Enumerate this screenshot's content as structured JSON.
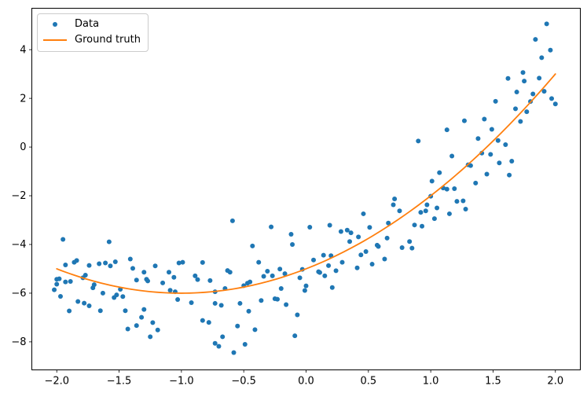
{
  "chart_data": {
    "type": "scatter",
    "title": "",
    "xlabel": "",
    "ylabel": "",
    "grid": false,
    "xlim": [
      -2.2,
      2.2
    ],
    "ylim": [
      -9.15,
      5.7
    ],
    "x_ticks": [
      -2.0,
      -1.5,
      -1.0,
      -0.5,
      0.0,
      0.5,
      1.0,
      1.5,
      2.0
    ],
    "x_tick_labels": [
      "−2.0",
      "−1.5",
      "−1.0",
      "−0.5",
      "0.0",
      "0.5",
      "1.0",
      "1.5",
      "2.0"
    ],
    "y_ticks": [
      -8,
      -6,
      -4,
      -2,
      0,
      2,
      4
    ],
    "y_tick_labels": [
      "−8",
      "−6",
      "−4",
      "−2",
      "0",
      "2",
      "4"
    ],
    "colors": {
      "data": "#1f77b4",
      "ground_truth": "#ff7f0e",
      "spine": "#000000"
    },
    "legend": {
      "position": "upper left",
      "entries": [
        {
          "label": "Data",
          "type": "scatter",
          "color": "#1f77b4"
        },
        {
          "label": "Ground truth",
          "type": "line",
          "color": "#ff7f0e"
        }
      ]
    },
    "series": [
      {
        "name": "Data",
        "type": "scatter",
        "color": "#1f77b4",
        "marker_radius": 3,
        "points": [
          [
            1.93,
            5.06
          ],
          [
            1.84,
            4.42
          ],
          [
            1.96,
            3.98
          ],
          [
            1.89,
            3.67
          ],
          [
            1.74,
            3.06
          ],
          [
            1.62,
            2.82
          ],
          [
            1.87,
            2.83
          ],
          [
            1.75,
            2.71
          ],
          [
            1.69,
            2.26
          ],
          [
            1.91,
            2.29
          ],
          [
            1.82,
            2.18
          ],
          [
            1.97,
            1.99
          ],
          [
            2.0,
            1.77
          ],
          [
            1.52,
            1.88
          ],
          [
            1.8,
            1.87
          ],
          [
            1.68,
            1.57
          ],
          [
            1.77,
            1.45
          ],
          [
            1.43,
            1.15
          ],
          [
            1.27,
            1.08
          ],
          [
            1.72,
            1.05
          ],
          [
            1.49,
            0.73
          ],
          [
            1.13,
            0.71
          ],
          [
            0.9,
            0.25
          ],
          [
            1.38,
            0.35
          ],
          [
            1.54,
            0.27
          ],
          [
            1.6,
            0.1
          ],
          [
            1.41,
            -0.25
          ],
          [
            1.48,
            -0.3
          ],
          [
            1.17,
            -0.37
          ],
          [
            1.55,
            -0.65
          ],
          [
            1.65,
            -0.58
          ],
          [
            1.3,
            -0.73
          ],
          [
            1.32,
            -0.76
          ],
          [
            1.07,
            -1.05
          ],
          [
            1.01,
            -1.4
          ],
          [
            1.45,
            -1.11
          ],
          [
            1.63,
            -1.15
          ],
          [
            1.36,
            -1.48
          ],
          [
            1.1,
            -1.68
          ],
          [
            1.13,
            -1.73
          ],
          [
            1.19,
            -1.71
          ],
          [
            1.0,
            -2.02
          ],
          [
            1.21,
            -2.23
          ],
          [
            1.26,
            -2.21
          ],
          [
            0.97,
            -2.37
          ],
          [
            1.28,
            -2.55
          ],
          [
            0.92,
            -2.68
          ],
          [
            0.96,
            -2.62
          ],
          [
            1.05,
            -2.5
          ],
          [
            1.15,
            -2.74
          ],
          [
            1.03,
            -2.94
          ],
          [
            0.87,
            -3.2
          ],
          [
            0.93,
            -3.25
          ],
          [
            0.83,
            -3.88
          ],
          [
            0.85,
            -4.15
          ],
          [
            0.77,
            -4.13
          ],
          [
            -0.59,
            -3.03
          ],
          [
            -0.28,
            -3.28
          ],
          [
            -0.12,
            -3.58
          ],
          [
            0.03,
            -3.29
          ],
          [
            -0.11,
            -4.0
          ],
          [
            -0.43,
            -4.06
          ],
          [
            0.19,
            -3.21
          ],
          [
            0.28,
            -3.47
          ],
          [
            0.33,
            -3.41
          ],
          [
            0.36,
            -3.52
          ],
          [
            0.35,
            -3.88
          ],
          [
            0.42,
            -3.69
          ],
          [
            0.46,
            -2.74
          ],
          [
            0.51,
            -3.3
          ],
          [
            0.57,
            -4.03
          ],
          [
            0.58,
            -4.08
          ],
          [
            0.66,
            -3.12
          ],
          [
            0.71,
            -2.13
          ],
          [
            0.7,
            -2.37
          ],
          [
            0.75,
            -2.62
          ],
          [
            0.65,
            -3.74
          ],
          [
            0.44,
            -4.43
          ],
          [
            0.48,
            -4.29
          ],
          [
            0.14,
            -4.44
          ],
          [
            0.2,
            -4.46
          ],
          [
            0.06,
            -4.64
          ],
          [
            0.63,
            -4.6
          ],
          [
            -1.95,
            -3.79
          ],
          [
            -1.58,
            -3.89
          ],
          [
            -1.93,
            -4.84
          ],
          [
            -1.86,
            -4.73
          ],
          [
            -1.84,
            -4.66
          ],
          [
            -1.74,
            -4.86
          ],
          [
            -1.66,
            -4.79
          ],
          [
            -1.61,
            -4.76
          ],
          [
            -1.57,
            -4.88
          ],
          [
            -1.53,
            -4.71
          ],
          [
            -1.41,
            -4.6
          ],
          [
            -1.39,
            -4.98
          ],
          [
            -1.21,
            -4.88
          ],
          [
            -1.02,
            -4.76
          ],
          [
            -0.99,
            -4.73
          ],
          [
            -0.83,
            -4.74
          ],
          [
            -2.0,
            -5.43
          ],
          [
            -1.98,
            -5.41
          ],
          [
            -2.0,
            -5.63
          ],
          [
            -1.93,
            -5.54
          ],
          [
            -1.89,
            -5.52
          ],
          [
            -1.79,
            -5.37
          ],
          [
            -1.77,
            -5.26
          ],
          [
            -1.71,
            -5.78
          ],
          [
            -1.63,
            -6.0
          ],
          [
            -1.54,
            -6.18
          ],
          [
            -1.52,
            -6.07
          ],
          [
            -1.49,
            -5.84
          ],
          [
            -1.47,
            -6.14
          ],
          [
            -1.36,
            -5.46
          ],
          [
            -1.3,
            -5.14
          ],
          [
            -1.28,
            -5.43
          ],
          [
            -1.27,
            -5.5
          ],
          [
            -1.1,
            -5.14
          ],
          [
            -1.06,
            -5.35
          ],
          [
            -1.15,
            -5.58
          ],
          [
            -1.09,
            -5.88
          ],
          [
            -1.05,
            -5.94
          ],
          [
            -1.03,
            -6.26
          ],
          [
            -0.89,
            -5.29
          ],
          [
            -0.87,
            -5.44
          ],
          [
            -0.77,
            -5.48
          ],
          [
            -0.92,
            -6.39
          ],
          [
            -1.97,
            -6.13
          ],
          [
            -2.02,
            -5.86
          ],
          [
            -1.7,
            -5.65
          ],
          [
            -1.83,
            -6.34
          ],
          [
            -1.78,
            -6.41
          ],
          [
            -1.74,
            -6.52
          ],
          [
            -1.9,
            -6.73
          ],
          [
            -1.65,
            -6.72
          ],
          [
            -1.45,
            -6.72
          ],
          [
            -1.43,
            -7.47
          ],
          [
            -1.36,
            -7.33
          ],
          [
            -1.32,
            -6.99
          ],
          [
            -1.3,
            -6.67
          ],
          [
            -1.23,
            -7.21
          ],
          [
            -1.19,
            -7.51
          ],
          [
            -1.25,
            -7.79
          ],
          [
            -0.83,
            -7.12
          ],
          [
            -0.78,
            -7.2
          ],
          [
            -0.38,
            -4.73
          ],
          [
            0.29,
            -4.73
          ],
          [
            0.53,
            -4.81
          ],
          [
            -0.63,
            -5.07
          ],
          [
            -0.61,
            -5.14
          ],
          [
            -0.31,
            -5.1
          ],
          [
            -0.21,
            -5.01
          ],
          [
            -0.27,
            -5.29
          ],
          [
            -0.34,
            -5.31
          ],
          [
            -0.17,
            -5.2
          ],
          [
            -0.05,
            -5.37
          ],
          [
            -0.03,
            -5.02
          ],
          [
            0.1,
            -5.12
          ],
          [
            0.11,
            -5.15
          ],
          [
            0.15,
            -5.29
          ],
          [
            0.18,
            -4.87
          ],
          [
            0.24,
            -5.08
          ],
          [
            0.41,
            -4.96
          ],
          [
            -0.65,
            -5.81
          ],
          [
            -0.5,
            -5.69
          ],
          [
            -0.47,
            -5.59
          ],
          [
            -0.45,
            -5.54
          ],
          [
            -0.2,
            -5.81
          ],
          [
            -0.01,
            -5.89
          ],
          [
            0.0,
            -5.7
          ],
          [
            0.21,
            -5.77
          ],
          [
            -0.73,
            -5.94
          ],
          [
            -0.73,
            -6.42
          ],
          [
            -0.68,
            -6.5
          ],
          [
            -0.53,
            -6.42
          ],
          [
            -0.36,
            -6.3
          ],
          [
            -0.25,
            -6.23
          ],
          [
            -0.23,
            -6.25
          ],
          [
            -0.16,
            -6.47
          ],
          [
            -0.46,
            -6.74
          ],
          [
            -0.07,
            -6.89
          ],
          [
            -0.55,
            -7.35
          ],
          [
            -0.41,
            -7.5
          ],
          [
            -0.67,
            -7.79
          ],
          [
            -0.09,
            -7.75
          ],
          [
            -0.73,
            -8.06
          ],
          [
            -0.7,
            -8.18
          ],
          [
            -0.49,
            -8.1
          ],
          [
            -0.58,
            -8.44
          ]
        ]
      },
      {
        "name": "Ground truth",
        "type": "line",
        "color": "#ff7f0e",
        "line_width": 1.8,
        "polynomial_coeffs": [
          1,
          2,
          -5
        ],
        "x_range": [
          -2,
          2
        ]
      }
    ]
  }
}
